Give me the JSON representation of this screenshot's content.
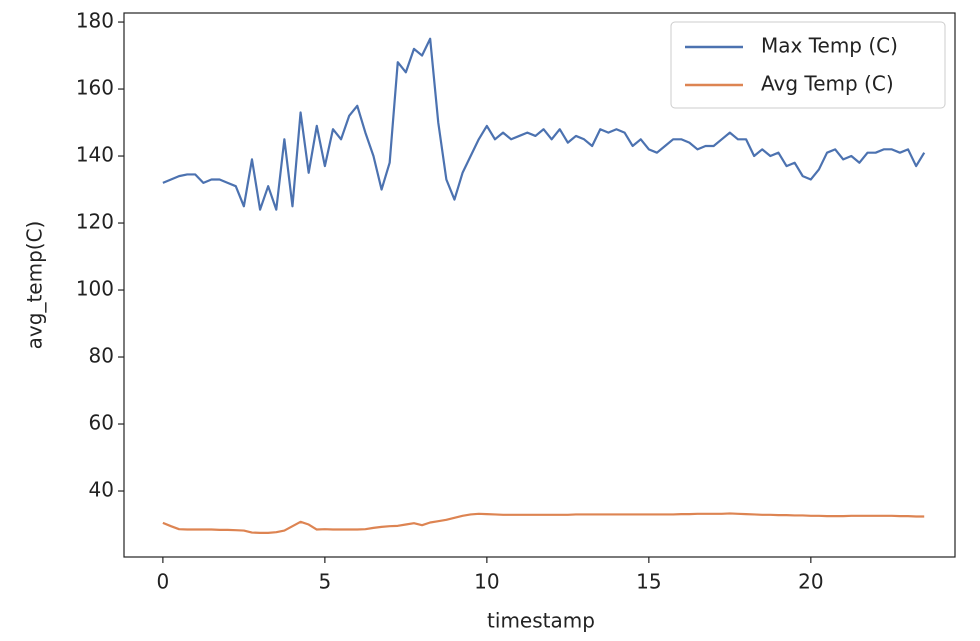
{
  "chart_data": {
    "type": "line",
    "x_label": "timestamp",
    "y_label": "avg_temp(C)",
    "x": [
      0,
      0.25,
      0.5,
      0.75,
      1,
      1.25,
      1.5,
      1.75,
      2,
      2.25,
      2.5,
      2.75,
      3,
      3.25,
      3.5,
      3.75,
      4,
      4.25,
      4.5,
      4.75,
      5,
      5.25,
      5.5,
      5.75,
      6,
      6.25,
      6.5,
      6.75,
      7,
      7.25,
      7.5,
      7.75,
      8,
      8.25,
      8.5,
      8.75,
      9,
      9.25,
      9.5,
      9.75,
      10,
      10.25,
      10.5,
      10.75,
      11,
      11.25,
      11.5,
      11.75,
      12,
      12.25,
      12.5,
      12.75,
      13,
      13.25,
      13.5,
      13.75,
      14,
      14.25,
      14.5,
      14.75,
      15,
      15.25,
      15.5,
      15.75,
      16,
      16.25,
      16.5,
      16.75,
      17,
      17.25,
      17.5,
      17.75,
      18,
      18.25,
      18.5,
      18.75,
      19,
      19.25,
      19.5,
      19.75,
      20,
      20.25,
      20.5,
      20.75,
      21,
      21.25,
      21.5,
      21.75,
      22,
      22.25,
      22.5,
      22.75,
      23,
      23.25,
      23.5
    ],
    "series": [
      {
        "name": "Max Temp (C)",
        "color": "#4c72b0",
        "values": [
          132,
          133,
          134,
          134.5,
          134.5,
          132,
          133,
          133,
          132,
          131,
          125,
          139,
          124,
          131,
          124,
          145,
          125,
          153,
          135,
          149,
          137,
          148,
          145,
          152,
          155,
          147,
          140,
          130,
          138,
          168,
          165,
          172,
          170,
          175,
          150,
          133,
          127,
          135,
          140,
          145,
          149,
          145,
          147,
          145,
          146,
          147,
          146,
          148,
          145,
          148,
          144,
          146,
          145,
          143,
          148,
          147,
          148,
          147,
          143,
          145,
          142,
          141,
          143,
          145,
          145,
          144,
          142,
          143,
          143,
          145,
          147,
          145,
          145,
          140,
          142,
          140,
          141,
          137,
          138,
          134,
          133,
          136,
          141,
          142,
          139,
          140,
          138,
          141,
          141,
          142,
          142,
          141,
          142,
          137,
          141
        ]
      },
      {
        "name": "Avg Temp (C)",
        "color": "#dd8452",
        "values": [
          30.5,
          29.5,
          28.6,
          28.5,
          28.5,
          28.5,
          28.5,
          28.4,
          28.4,
          28.3,
          28.2,
          27.6,
          27.5,
          27.5,
          27.7,
          28.2,
          29.5,
          30.8,
          30,
          28.5,
          28.6,
          28.5,
          28.5,
          28.5,
          28.5,
          28.6,
          29,
          29.3,
          29.5,
          29.6,
          30,
          30.4,
          29.8,
          30.6,
          31,
          31.4,
          32,
          32.6,
          33,
          33.2,
          33.1,
          33,
          32.9,
          32.9,
          32.9,
          32.9,
          32.9,
          32.9,
          32.9,
          32.9,
          32.9,
          33,
          33,
          33,
          33,
          33,
          33,
          33,
          33,
          33,
          33,
          33,
          33,
          33,
          33.1,
          33.1,
          33.2,
          33.2,
          33.2,
          33.2,
          33.3,
          33.2,
          33.1,
          33,
          32.9,
          32.9,
          32.8,
          32.8,
          32.7,
          32.7,
          32.6,
          32.6,
          32.5,
          32.5,
          32.5,
          32.6,
          32.6,
          32.6,
          32.6,
          32.6,
          32.6,
          32.5,
          32.5,
          32.4,
          32.4
        ]
      }
    ],
    "xlim": [
      -1.2,
      24.45
    ],
    "ylim": [
      20.3,
      182.7
    ],
    "xticks": [
      0,
      5,
      10,
      15,
      20
    ],
    "yticks": [
      40,
      60,
      80,
      100,
      120,
      140,
      160,
      180
    ],
    "legend": "upper right",
    "grid": false
  }
}
